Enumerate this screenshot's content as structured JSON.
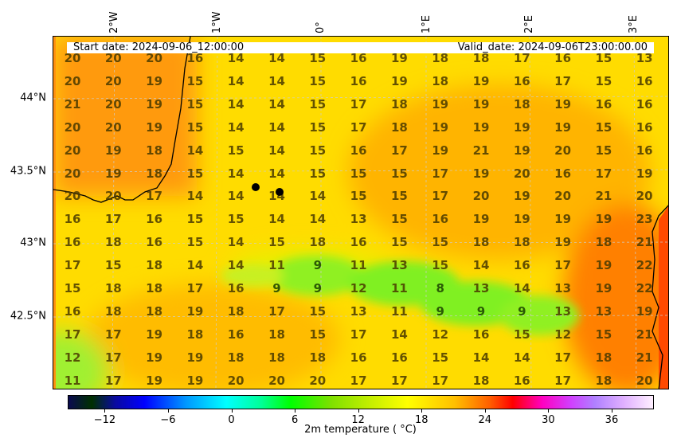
{
  "header": {
    "start": "Start date: 2024-09-06_12:00:00",
    "valid": "Valid_date: 2024-09-06T23:00:00.00"
  },
  "lon_labels": [
    "2°W",
    "1°W",
    "0°",
    "1°E",
    "2°E",
    "3°E"
  ],
  "lat_labels": [
    "44°N",
    "43.5°N",
    "43°N",
    "42.5°N"
  ],
  "grid": [
    [
      20,
      20,
      20,
      16,
      14,
      14,
      15,
      16,
      19,
      18,
      18,
      17,
      16,
      15,
      13
    ],
    [
      20,
      20,
      19,
      15,
      14,
      14,
      15,
      16,
      19,
      18,
      19,
      16,
      17,
      15,
      16
    ],
    [
      21,
      20,
      19,
      15,
      14,
      14,
      15,
      17,
      18,
      19,
      19,
      18,
      19,
      16,
      16
    ],
    [
      20,
      20,
      19,
      15,
      14,
      14,
      15,
      17,
      18,
      19,
      19,
      19,
      19,
      15,
      16
    ],
    [
      20,
      19,
      18,
      14,
      15,
      14,
      15,
      16,
      17,
      19,
      21,
      19,
      20,
      15,
      16
    ],
    [
      20,
      19,
      18,
      15,
      14,
      14,
      15,
      15,
      15,
      17,
      19,
      20,
      16,
      17,
      19
    ],
    [
      20,
      20,
      17,
      14,
      14,
      14,
      14,
      15,
      15,
      17,
      20,
      19,
      20,
      21,
      20
    ],
    [
      16,
      17,
      16,
      15,
      15,
      14,
      14,
      13,
      15,
      16,
      19,
      19,
      19,
      19,
      23
    ],
    [
      16,
      18,
      16,
      15,
      14,
      15,
      18,
      16,
      15,
      15,
      18,
      18,
      19,
      18,
      21
    ],
    [
      17,
      15,
      18,
      14,
      14,
      11,
      9,
      11,
      13,
      15,
      14,
      16,
      17,
      19,
      22
    ],
    [
      15,
      18,
      18,
      17,
      16,
      9,
      9,
      12,
      11,
      8,
      13,
      14,
      13,
      19,
      22
    ],
    [
      16,
      18,
      18,
      19,
      18,
      17,
      15,
      13,
      11,
      9,
      9,
      9,
      13,
      13,
      19
    ],
    [
      17,
      17,
      19,
      18,
      16,
      18,
      15,
      17,
      14,
      12,
      16,
      15,
      12,
      15,
      21
    ],
    [
      12,
      17,
      19,
      19,
      18,
      18,
      18,
      16,
      16,
      15,
      14,
      14,
      17,
      18,
      21
    ],
    [
      11,
      17,
      19,
      19,
      20,
      20,
      20,
      17,
      17,
      17,
      18,
      16,
      17,
      18,
      20
    ]
  ],
  "colorbar": {
    "ticks": [
      "−12",
      "−6",
      "0",
      "6",
      "12",
      "18",
      "24",
      "30",
      "36"
    ],
    "tick_values": [
      -12,
      -6,
      0,
      6,
      12,
      18,
      24,
      30,
      36
    ],
    "range": [
      -15.5,
      40
    ],
    "label": "2m temperature ($^\\circ$C)",
    "label_display": "2m temperature ( °C)"
  }
}
